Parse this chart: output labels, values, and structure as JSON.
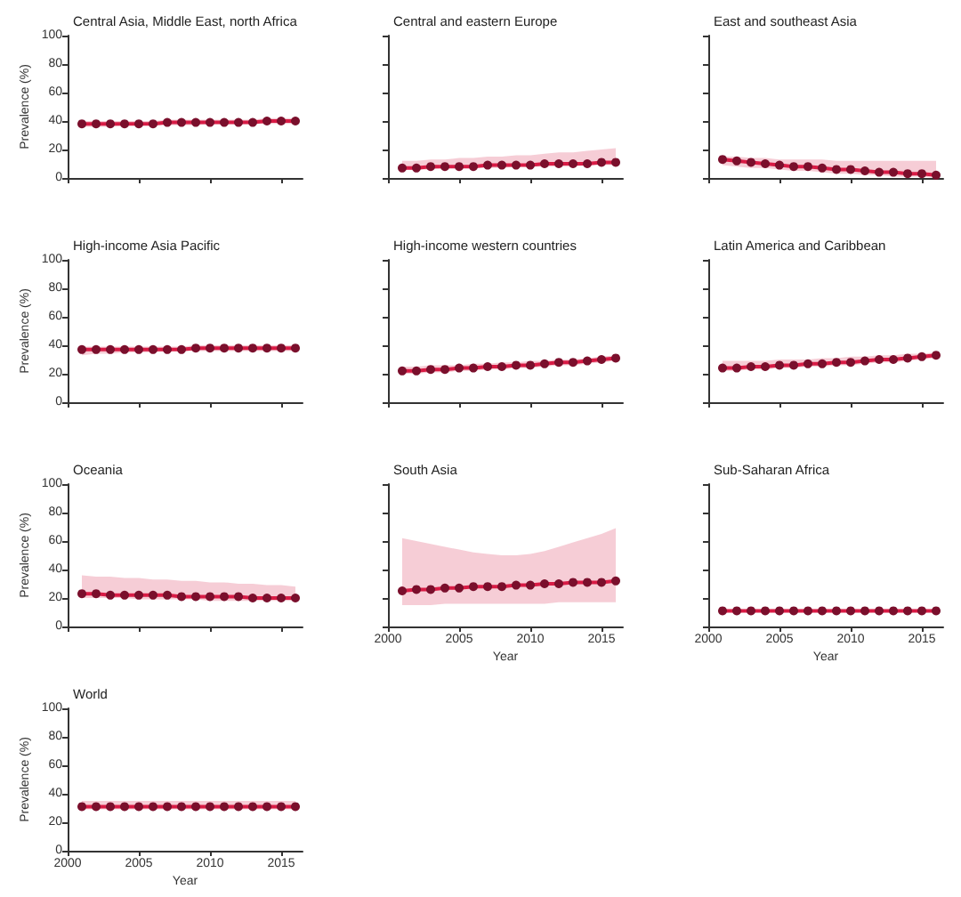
{
  "chart_data": [
    {
      "type": "line",
      "title": "Central Asia, Middle East, north Africa",
      "ylabel": "Prevalence (%)",
      "x": [
        2001,
        2002,
        2003,
        2004,
        2005,
        2006,
        2007,
        2008,
        2009,
        2010,
        2011,
        2012,
        2013,
        2014,
        2015,
        2016
      ],
      "xlim": [
        2000,
        2016.5
      ],
      "xticks": [
        2000,
        2005,
        2010,
        2015
      ],
      "ylim": [
        0,
        100
      ],
      "yticks": [
        0,
        20,
        40,
        60,
        80,
        100
      ],
      "tick_labels": "y",
      "marker": "circle",
      "line_style": "solid",
      "grid": false,
      "series": [
        {
          "color": "#d81b45",
          "values": [
            38,
            38,
            38,
            38,
            38,
            38,
            39,
            39,
            39,
            39,
            39,
            39,
            39,
            40,
            40,
            40
          ],
          "lower": [
            36,
            36,
            36,
            37,
            37,
            37,
            37,
            37,
            37,
            38,
            38,
            38,
            38,
            38,
            38,
            38
          ],
          "upper": [
            40,
            40,
            40,
            40,
            40,
            40,
            41,
            41,
            41,
            41,
            41,
            41,
            41,
            42,
            42,
            42
          ]
        }
      ]
    },
    {
      "type": "line",
      "title": "Central and eastern Europe",
      "x": [
        2001,
        2002,
        2003,
        2004,
        2005,
        2006,
        2007,
        2008,
        2009,
        2010,
        2011,
        2012,
        2013,
        2014,
        2015,
        2016
      ],
      "xlim": [
        2000,
        2016.5
      ],
      "xticks": [
        2000,
        2005,
        2010,
        2015
      ],
      "ylim": [
        0,
        100
      ],
      "yticks": [
        0,
        20,
        40,
        60,
        80,
        100
      ],
      "tick_labels": false,
      "marker": "circle",
      "line_style": "solid",
      "grid": false,
      "series": [
        {
          "color": "#d81b45",
          "values": [
            7,
            7,
            8,
            8,
            8,
            8,
            9,
            9,
            9,
            9,
            10,
            10,
            10,
            10,
            11,
            11
          ],
          "lower": [
            6,
            6,
            6,
            7,
            7,
            7,
            7,
            7,
            8,
            8,
            8,
            8,
            8,
            9,
            9,
            9
          ],
          "upper": [
            12,
            12,
            13,
            13,
            14,
            14,
            15,
            15,
            16,
            16,
            17,
            18,
            18,
            19,
            20,
            21
          ]
        }
      ]
    },
    {
      "type": "line",
      "title": "East and southeast Asia",
      "x": [
        2001,
        2002,
        2003,
        2004,
        2005,
        2006,
        2007,
        2008,
        2009,
        2010,
        2011,
        2012,
        2013,
        2014,
        2015,
        2016
      ],
      "xlim": [
        2000,
        2016.5
      ],
      "xticks": [
        2000,
        2005,
        2010,
        2015
      ],
      "ylim": [
        0,
        100
      ],
      "yticks": [
        0,
        20,
        40,
        60,
        80,
        100
      ],
      "tick_labels": false,
      "marker": "circle",
      "line_style": "solid",
      "grid": false,
      "series": [
        {
          "color": "#d81b45",
          "values": [
            13,
            12,
            11,
            10,
            9,
            8,
            8,
            7,
            6,
            6,
            5,
            4,
            4,
            3,
            3,
            2
          ],
          "lower": [
            9,
            8,
            7,
            7,
            6,
            5,
            5,
            4,
            3,
            3,
            2,
            2,
            1,
            1,
            1,
            0
          ],
          "upper": [
            15,
            15,
            14,
            14,
            13,
            13,
            13,
            13,
            12,
            12,
            12,
            12,
            12,
            12,
            12,
            12
          ]
        }
      ]
    },
    {
      "type": "line",
      "title": "High-income Asia Pacific",
      "ylabel": "Prevalence (%)",
      "x": [
        2001,
        2002,
        2003,
        2004,
        2005,
        2006,
        2007,
        2008,
        2009,
        2010,
        2011,
        2012,
        2013,
        2014,
        2015,
        2016
      ],
      "xlim": [
        2000,
        2016.5
      ],
      "xticks": [
        2000,
        2005,
        2010,
        2015
      ],
      "ylim": [
        0,
        100
      ],
      "yticks": [
        0,
        20,
        40,
        60,
        80,
        100
      ],
      "tick_labels": "y",
      "marker": "circle",
      "line_style": "solid",
      "grid": false,
      "series": [
        {
          "color": "#d81b45",
          "values": [
            37,
            37,
            37,
            37,
            37,
            37,
            37,
            37,
            38,
            38,
            38,
            38,
            38,
            38,
            38,
            38
          ],
          "lower": [
            33,
            34,
            34,
            35,
            35,
            35,
            36,
            36,
            36,
            36,
            36,
            36,
            36,
            36,
            36,
            36
          ],
          "upper": [
            39,
            39,
            39,
            39,
            39,
            39,
            39,
            39,
            40,
            40,
            40,
            40,
            40,
            40,
            40,
            40
          ]
        }
      ]
    },
    {
      "type": "line",
      "title": "High-income western countries",
      "x": [
        2001,
        2002,
        2003,
        2004,
        2005,
        2006,
        2007,
        2008,
        2009,
        2010,
        2011,
        2012,
        2013,
        2014,
        2015,
        2016
      ],
      "xlim": [
        2000,
        2016.5
      ],
      "xticks": [
        2000,
        2005,
        2010,
        2015
      ],
      "ylim": [
        0,
        100
      ],
      "yticks": [
        0,
        20,
        40,
        60,
        80,
        100
      ],
      "tick_labels": false,
      "marker": "circle",
      "line_style": "solid",
      "grid": false,
      "series": [
        {
          "color": "#d81b45",
          "values": [
            22,
            22,
            23,
            23,
            24,
            24,
            25,
            25,
            26,
            26,
            27,
            28,
            28,
            29,
            30,
            31
          ],
          "lower": [
            20,
            20,
            21,
            21,
            22,
            22,
            23,
            23,
            24,
            24,
            25,
            26,
            26,
            27,
            28,
            29
          ],
          "upper": [
            25,
            25,
            26,
            26,
            26,
            27,
            27,
            28,
            28,
            29,
            29,
            30,
            30,
            31,
            32,
            33
          ]
        }
      ]
    },
    {
      "type": "line",
      "title": "Latin America and Caribbean",
      "x": [
        2001,
        2002,
        2003,
        2004,
        2005,
        2006,
        2007,
        2008,
        2009,
        2010,
        2011,
        2012,
        2013,
        2014,
        2015,
        2016
      ],
      "xlim": [
        2000,
        2016.5
      ],
      "xticks": [
        2000,
        2005,
        2010,
        2015
      ],
      "ylim": [
        0,
        100
      ],
      "yticks": [
        0,
        20,
        40,
        60,
        80,
        100
      ],
      "tick_labels": false,
      "marker": "circle",
      "line_style": "solid",
      "grid": false,
      "series": [
        {
          "color": "#d81b45",
          "values": [
            24,
            24,
            25,
            25,
            26,
            26,
            27,
            27,
            28,
            28,
            29,
            30,
            30,
            31,
            32,
            33
          ],
          "lower": [
            22,
            22,
            23,
            23,
            24,
            24,
            25,
            25,
            26,
            26,
            27,
            28,
            28,
            29,
            30,
            31
          ],
          "upper": [
            29,
            29,
            29,
            29,
            30,
            30,
            30,
            31,
            31,
            32,
            32,
            33,
            33,
            34,
            34,
            35
          ]
        }
      ]
    },
    {
      "type": "line",
      "title": "Oceania",
      "ylabel": "Prevalence (%)",
      "x": [
        2001,
        2002,
        2003,
        2004,
        2005,
        2006,
        2007,
        2008,
        2009,
        2010,
        2011,
        2012,
        2013,
        2014,
        2015,
        2016
      ],
      "xlim": [
        2000,
        2016.5
      ],
      "xticks": [
        2000,
        2005,
        2010,
        2015
      ],
      "ylim": [
        0,
        100
      ],
      "yticks": [
        0,
        20,
        40,
        60,
        80,
        100
      ],
      "tick_labels": "y",
      "marker": "circle",
      "line_style": "solid",
      "grid": false,
      "series": [
        {
          "color": "#d81b45",
          "values": [
            23,
            23,
            22,
            22,
            22,
            22,
            22,
            21,
            21,
            21,
            21,
            21,
            20,
            20,
            20,
            20
          ],
          "lower": [
            20,
            20,
            20,
            20,
            19,
            19,
            19,
            19,
            19,
            18,
            18,
            18,
            18,
            18,
            18,
            18
          ],
          "upper": [
            36,
            35,
            35,
            34,
            34,
            33,
            33,
            32,
            32,
            31,
            31,
            30,
            30,
            29,
            29,
            28
          ]
        }
      ]
    },
    {
      "type": "line",
      "title": "South Asia",
      "xlabel": "Year",
      "x": [
        2001,
        2002,
        2003,
        2004,
        2005,
        2006,
        2007,
        2008,
        2009,
        2010,
        2011,
        2012,
        2013,
        2014,
        2015,
        2016
      ],
      "xlim": [
        2000,
        2016.5
      ],
      "xticks": [
        2000,
        2005,
        2010,
        2015
      ],
      "ylim": [
        0,
        100
      ],
      "yticks": [
        0,
        20,
        40,
        60,
        80,
        100
      ],
      "tick_labels": "x",
      "marker": "circle",
      "line_style": "solid",
      "grid": false,
      "series": [
        {
          "color": "#d81b45",
          "values": [
            25,
            26,
            26,
            27,
            27,
            28,
            28,
            28,
            29,
            29,
            30,
            30,
            31,
            31,
            31,
            32
          ],
          "lower": [
            15,
            15,
            15,
            16,
            16,
            16,
            16,
            16,
            16,
            16,
            16,
            17,
            17,
            17,
            17,
            17
          ],
          "upper": [
            62,
            60,
            58,
            56,
            54,
            52,
            51,
            50,
            50,
            51,
            53,
            56,
            59,
            62,
            65,
            69
          ]
        }
      ]
    },
    {
      "type": "line",
      "title": "Sub-Saharan Africa",
      "xlabel": "Year",
      "x": [
        2001,
        2002,
        2003,
        2004,
        2005,
        2006,
        2007,
        2008,
        2009,
        2010,
        2011,
        2012,
        2013,
        2014,
        2015,
        2016
      ],
      "xlim": [
        2000,
        2016.5
      ],
      "xticks": [
        2000,
        2005,
        2010,
        2015
      ],
      "ylim": [
        0,
        100
      ],
      "yticks": [
        0,
        20,
        40,
        60,
        80,
        100
      ],
      "tick_labels": "x",
      "marker": "circle",
      "line_style": "solid",
      "grid": false,
      "series": [
        {
          "color": "#d81b45",
          "values": [
            11,
            11,
            11,
            11,
            11,
            11,
            11,
            11,
            11,
            11,
            11,
            11,
            11,
            11,
            11,
            11
          ],
          "lower": [
            10,
            10,
            10,
            10,
            10,
            10,
            10,
            10,
            10,
            10,
            10,
            10,
            10,
            10,
            10,
            10
          ],
          "upper": [
            12,
            12,
            12,
            12,
            12,
            12,
            12,
            12,
            12,
            12,
            12,
            12,
            12,
            12,
            12,
            12
          ]
        }
      ]
    },
    {
      "type": "line",
      "title": "World",
      "xlabel": "Year",
      "ylabel": "Prevalence (%)",
      "x": [
        2001,
        2002,
        2003,
        2004,
        2005,
        2006,
        2007,
        2008,
        2009,
        2010,
        2011,
        2012,
        2013,
        2014,
        2015,
        2016
      ],
      "xlim": [
        2000,
        2016.5
      ],
      "xticks": [
        2000,
        2005,
        2010,
        2015
      ],
      "ylim": [
        0,
        100
      ],
      "yticks": [
        0,
        20,
        40,
        60,
        80,
        100
      ],
      "marker": "circle",
      "line_style": "solid",
      "grid": false,
      "series": [
        {
          "color": "#d81b45",
          "values": [
            31,
            31,
            31,
            31,
            31,
            31,
            31,
            31,
            31,
            31,
            31,
            31,
            31,
            31,
            31,
            31
          ],
          "lower": [
            29,
            29,
            29,
            29,
            29,
            29,
            29,
            29,
            29,
            29,
            29,
            29,
            29,
            29,
            29,
            29
          ],
          "upper": [
            35,
            35,
            35,
            35,
            35,
            35,
            35,
            35,
            35,
            35,
            35,
            35,
            35,
            35,
            35,
            35
          ]
        }
      ]
    }
  ]
}
